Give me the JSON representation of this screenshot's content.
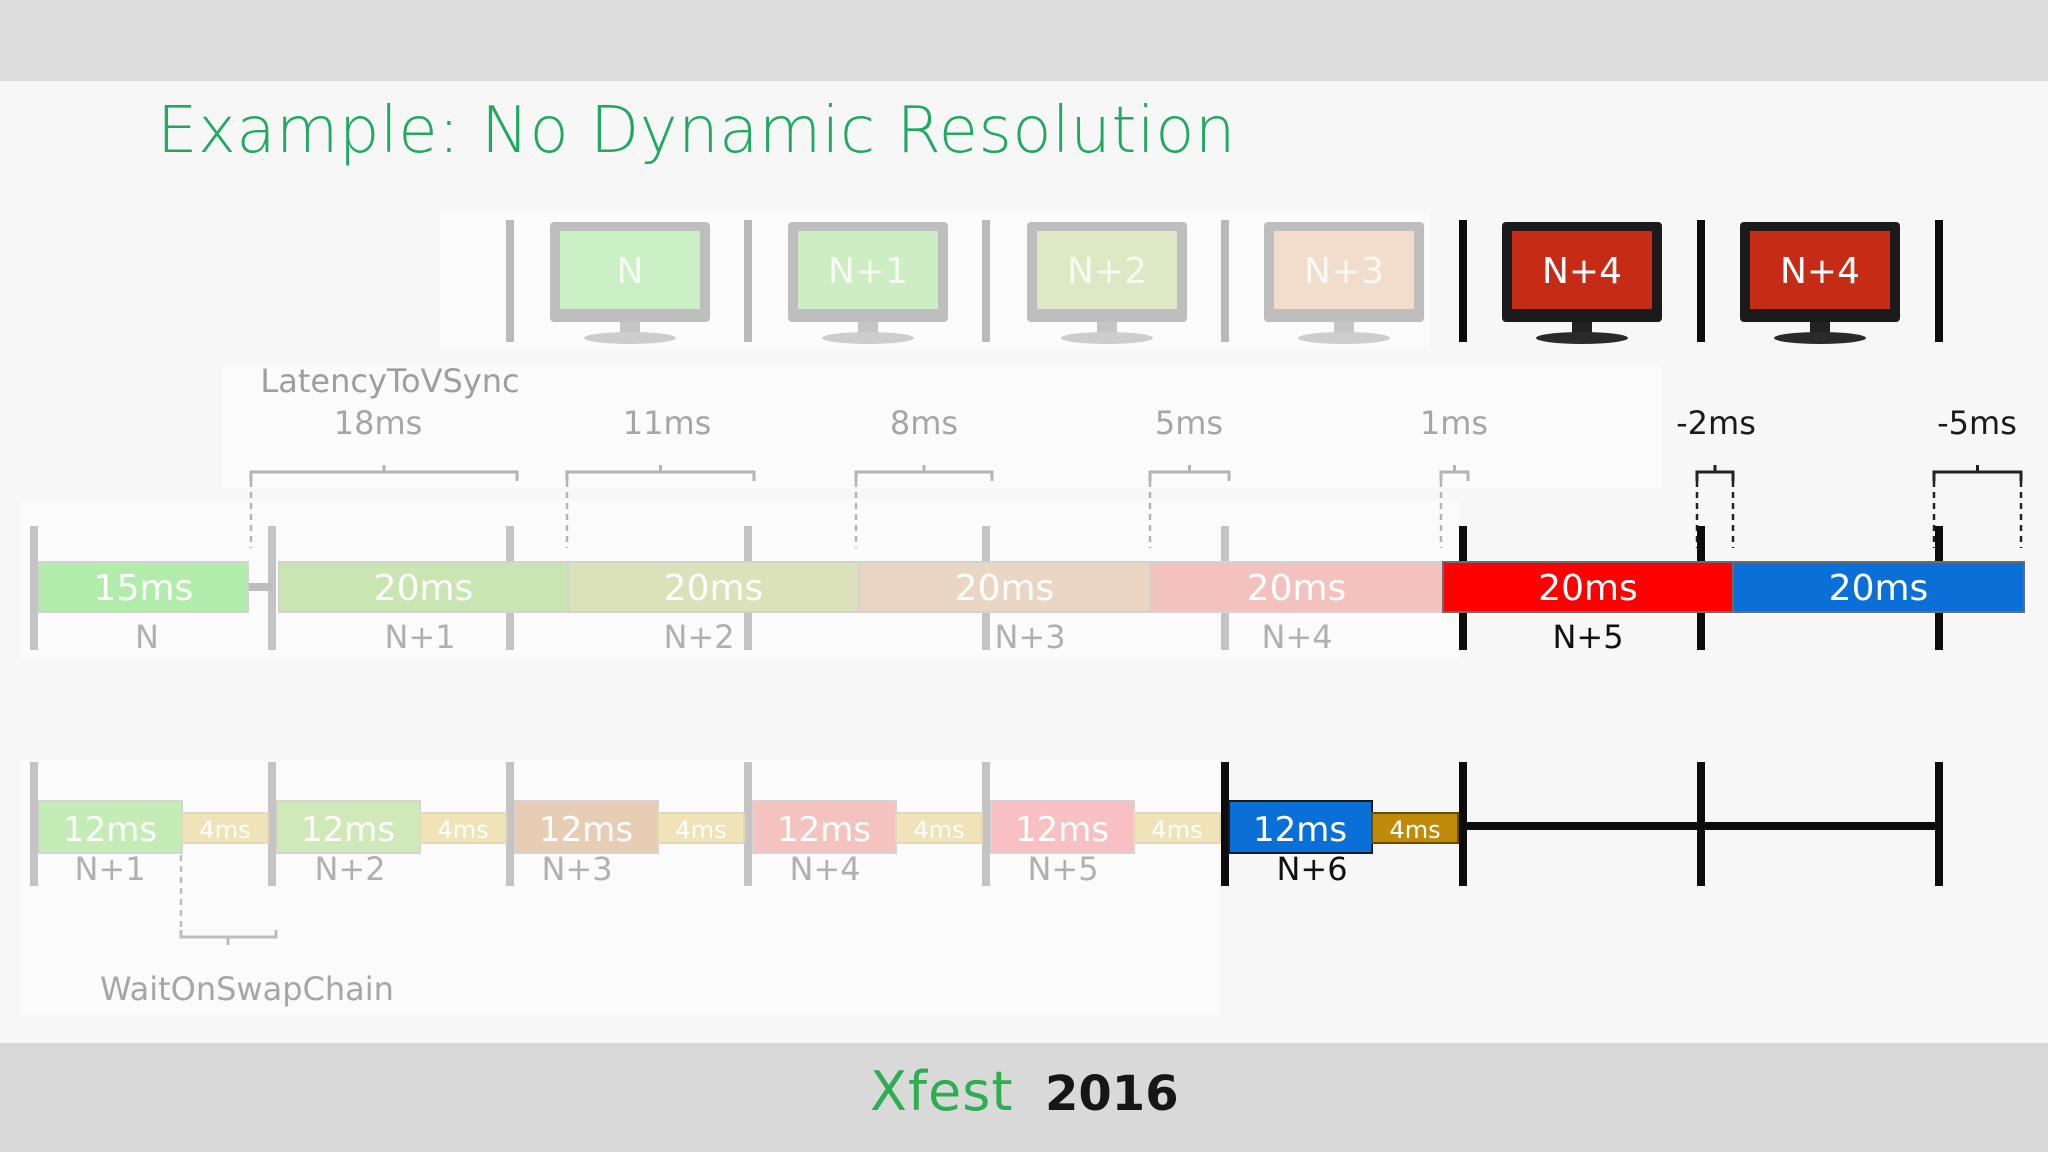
{
  "title": "Example: No Dynamic Resolution",
  "logo": {
    "brand": "Xfest",
    "year": "2016"
  },
  "monitors": [
    {
      "label": "N",
      "state": "faded",
      "color": "#a5e89a"
    },
    {
      "label": "N+1",
      "state": "faded",
      "color": "#a9e294"
    },
    {
      "label": "N+2",
      "state": "faded",
      "color": "#c5d99a"
    },
    {
      "label": "N+3",
      "state": "faded",
      "color": "#ecc3a5"
    },
    {
      "label": "N+4",
      "state": "active",
      "color": "#c62b16"
    },
    {
      "label": "N+4",
      "state": "active",
      "color": "#c62b16"
    }
  ],
  "latency": {
    "caption": "LatencyToVSync",
    "values": [
      "18ms",
      "11ms",
      "8ms",
      "5ms",
      "1ms",
      "-2ms",
      "-5ms"
    ]
  },
  "gpu_row": {
    "blocks": [
      {
        "duration": "15ms",
        "frame": "N",
        "color": "#b2ecaa",
        "state": "faded"
      },
      {
        "duration": "20ms",
        "frame": "N+1",
        "color": "#c9e6b2",
        "state": "faded"
      },
      {
        "duration": "20ms",
        "frame": "N+2",
        "color": "#dbe1b8",
        "state": "faded"
      },
      {
        "duration": "20ms",
        "frame": "N+3",
        "color": "#ead6c2",
        "state": "faded"
      },
      {
        "duration": "20ms",
        "frame": "N+4",
        "color": "#f4c2be",
        "state": "faded"
      },
      {
        "duration": "20ms",
        "frame": "N+5",
        "color": "#ff0000",
        "state": "active"
      },
      {
        "duration": "20ms",
        "frame": "",
        "color": "#0a6fd6",
        "state": "active"
      }
    ]
  },
  "cpu_row": {
    "blocks": [
      {
        "duration": "12ms",
        "wait": "4ms",
        "frame": "N+1",
        "color": "#c4ecb5",
        "wait_color": "#f1e3b8",
        "state": "faded"
      },
      {
        "duration": "12ms",
        "wait": "4ms",
        "frame": "N+2",
        "color": "#cfeab8",
        "wait_color": "#f1e3b8",
        "state": "faded"
      },
      {
        "duration": "12ms",
        "wait": "4ms",
        "frame": "N+3",
        "color": "#e6cdb4",
        "wait_color": "#f1e3b8",
        "state": "faded"
      },
      {
        "duration": "12ms",
        "wait": "4ms",
        "frame": "N+4",
        "color": "#f4c3c0",
        "wait_color": "#f1e3b8",
        "state": "faded"
      },
      {
        "duration": "12ms",
        "wait": "4ms",
        "frame": "N+5",
        "color": "#f9c0c4",
        "wait_color": "#f1e3b8",
        "state": "faded"
      },
      {
        "duration": "12ms",
        "wait": "4ms",
        "frame": "N+6",
        "color": "#0a6fd6",
        "wait_color": "#c08a0a",
        "state": "active"
      }
    ],
    "wait_caption": "WaitOnSwapChain"
  }
}
